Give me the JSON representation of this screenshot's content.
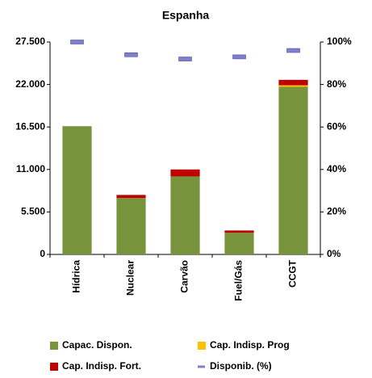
{
  "chart_data": {
    "type": "bar",
    "stacked": true,
    "title": "Espanha",
    "categories": [
      "Hídrica",
      "Nuclear",
      "Carvão",
      "Fuel/Gás",
      "CCGT"
    ],
    "series": [
      {
        "name": "Capac. Dispon.",
        "color": "#77933c",
        "values": [
          16600,
          7300,
          10100,
          2800,
          21700
        ]
      },
      {
        "name": "Cap. Indisp. Prog",
        "color": "#ffc000",
        "values": [
          0,
          0,
          0,
          0,
          200
        ]
      },
      {
        "name": "Cap. Indisp. Fort.",
        "color": "#c00000",
        "values": [
          0,
          400,
          900,
          300,
          700
        ]
      },
      {
        "name": "Disponib. (%)",
        "color": "#7f7fd0",
        "type": "marker",
        "axis": "y2",
        "values": [
          100,
          94,
          92,
          93,
          96
        ]
      }
    ],
    "ylim": [
      0,
      27500
    ],
    "yticks": [
      {
        "value": 0,
        "label": "0"
      },
      {
        "value": 5500,
        "label": "5.500"
      },
      {
        "value": 11000,
        "label": "11.000"
      },
      {
        "value": 16500,
        "label": "16.500"
      },
      {
        "value": 22000,
        "label": "22.000"
      },
      {
        "value": 27500,
        "label": "27.500"
      }
    ],
    "y2lim": [
      0,
      100
    ],
    "y2ticks": [
      {
        "value": 0,
        "label": "0%"
      },
      {
        "value": 20,
        "label": "20%"
      },
      {
        "value": 40,
        "label": "40%"
      },
      {
        "value": 60,
        "label": "60%"
      },
      {
        "value": 80,
        "label": "80%"
      },
      {
        "value": 100,
        "label": "100%"
      }
    ],
    "grid": false,
    "legend": "bottom"
  }
}
